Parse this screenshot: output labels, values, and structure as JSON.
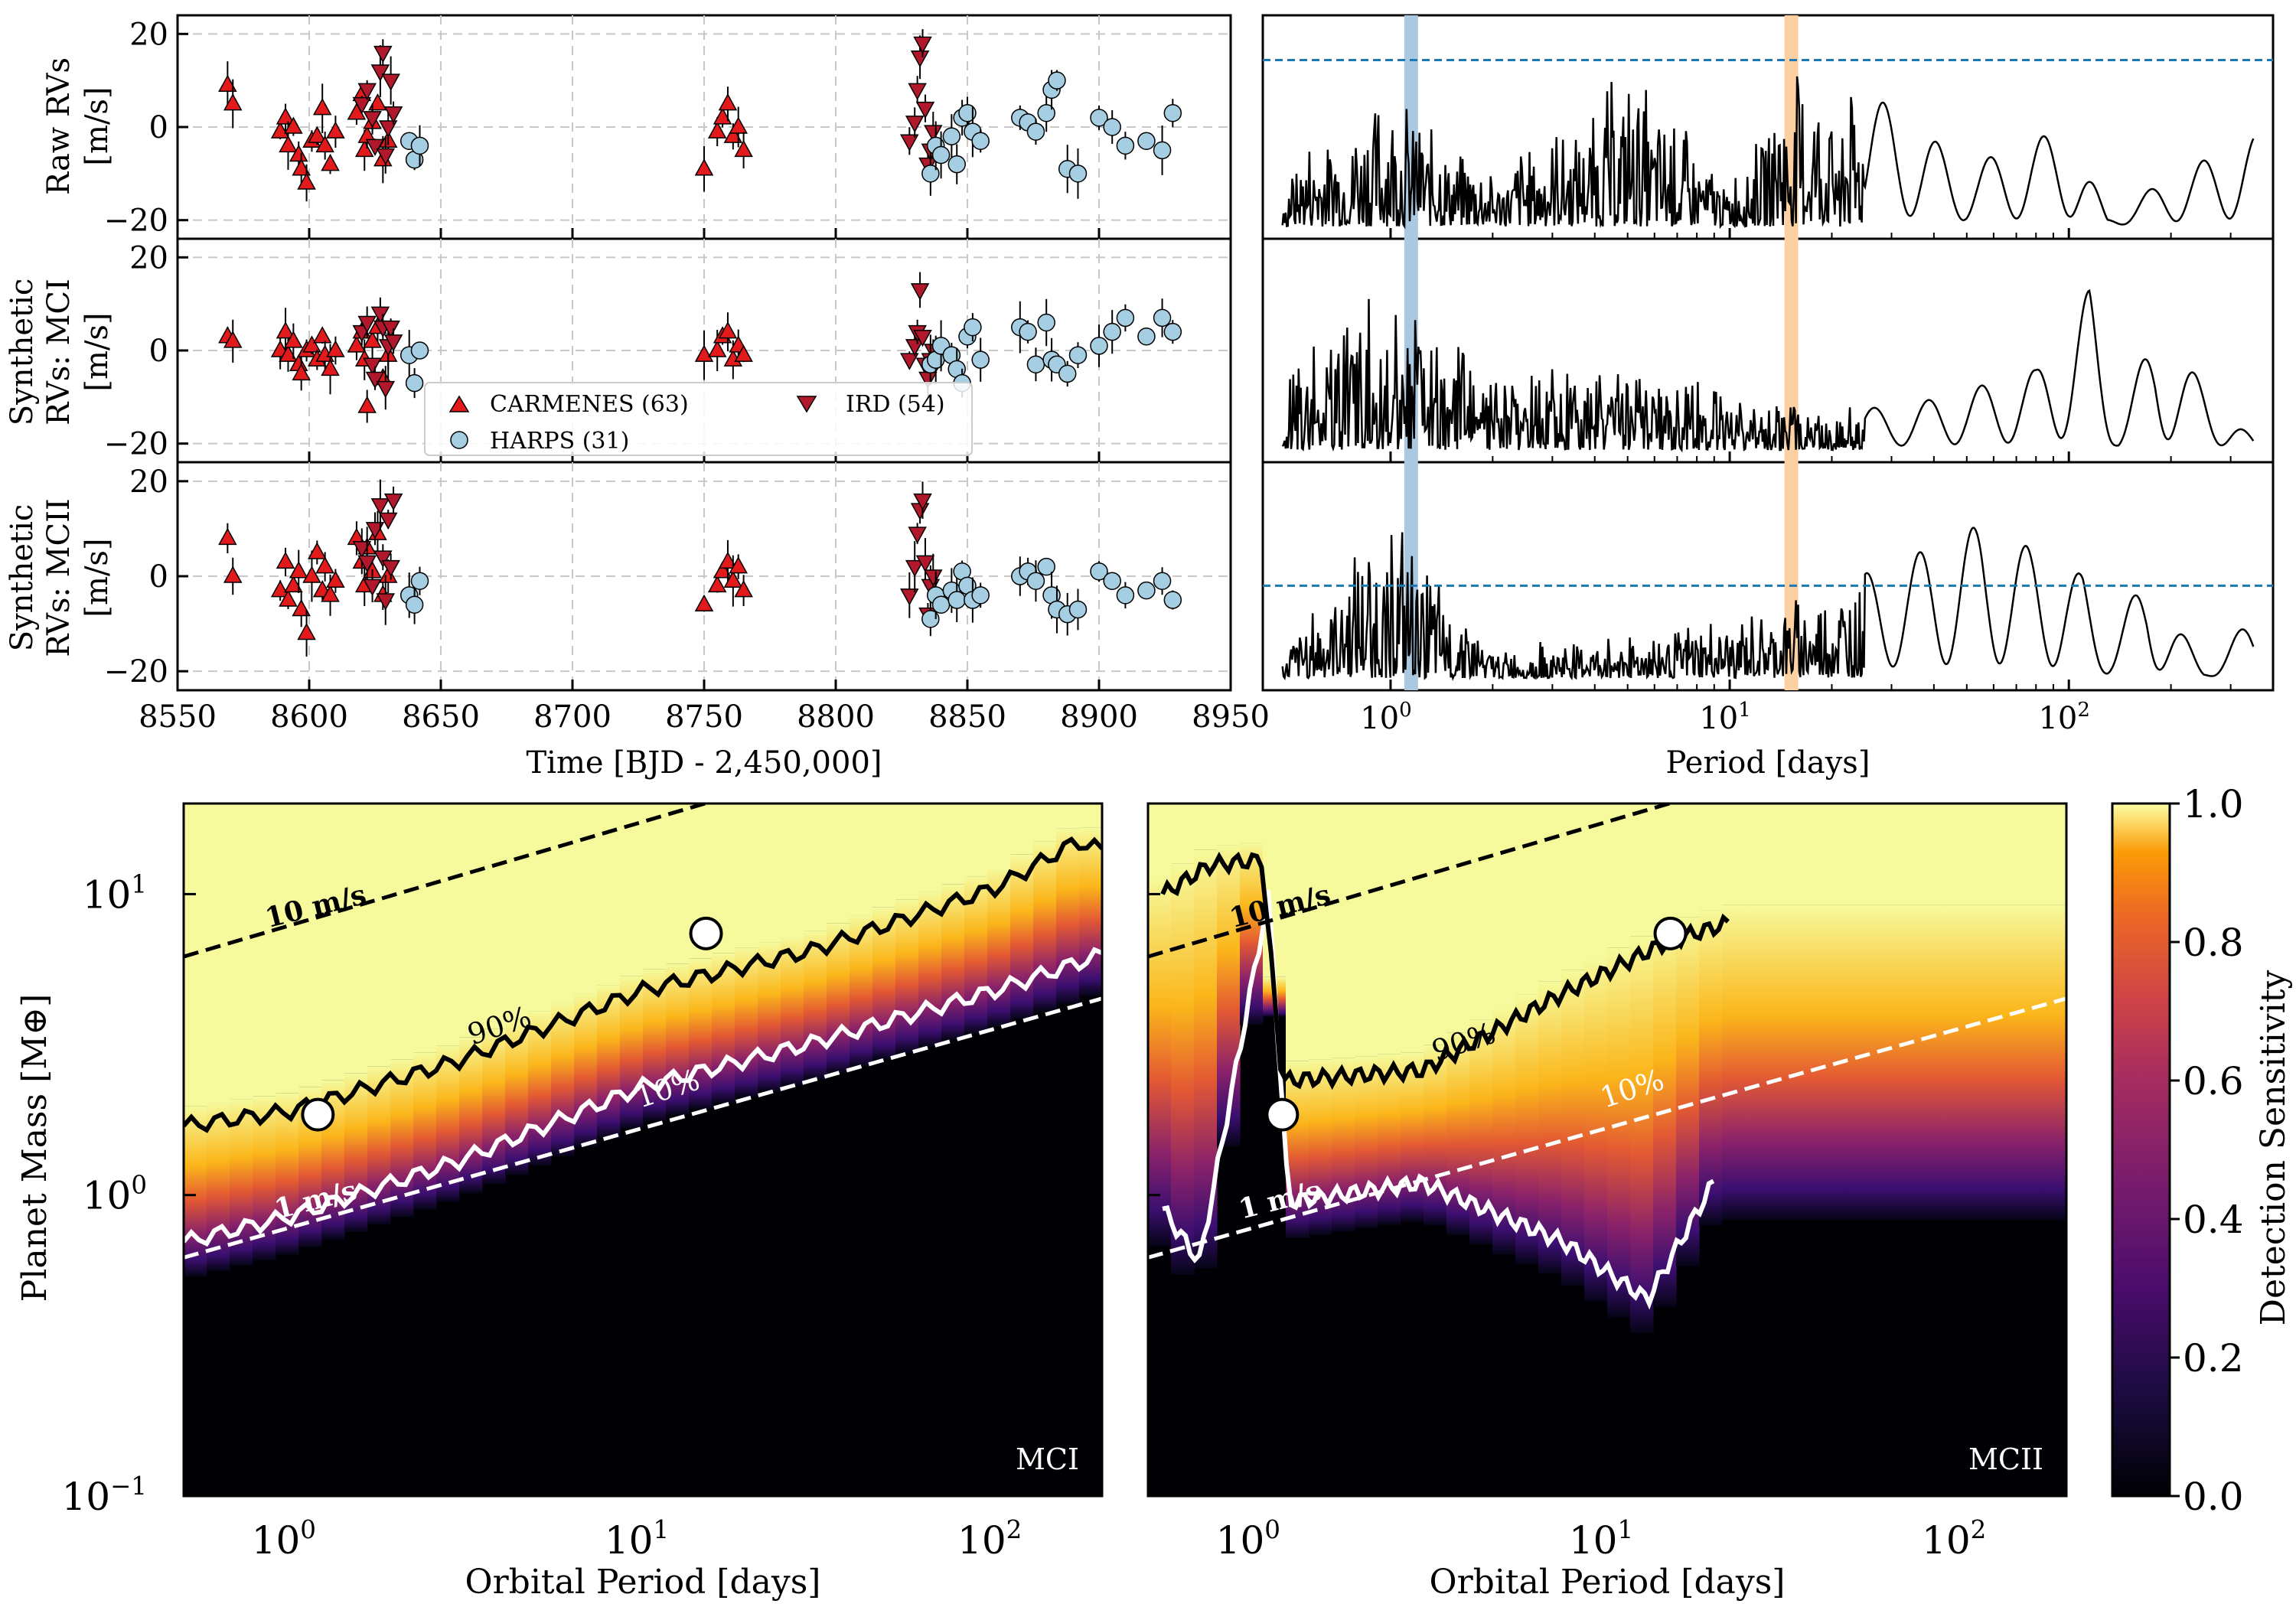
{
  "figure": {
    "title": "",
    "rv_panels": {
      "ylabels": [
        [
          "Raw RVs",
          "[m/s]"
        ],
        [
          "Synthetic",
          "RVs: MCI",
          "[m/s]"
        ],
        [
          "Synthetic",
          "RVs: MCII",
          "[m/s]"
        ]
      ],
      "xlabel": "Time [BJD - 2,450,000]",
      "x_ticks": [
        "8550",
        "8600",
        "8650",
        "8700",
        "8750",
        "8800",
        "8850",
        "8900",
        "8950"
      ],
      "y_ticks": [
        "20",
        "0",
        "−20"
      ]
    },
    "periodogram_panels": {
      "xlabel": "Period [days]",
      "x_ticks": [
        [
          "10",
          "0"
        ],
        [
          "10",
          "1"
        ],
        [
          "10",
          "2"
        ]
      ]
    },
    "sensitivity_maps": {
      "ylabel": "Planet Mass [M⊕]",
      "xlabel": "Orbital Period [days]",
      "y_ticks": [
        [
          "10",
          "1"
        ],
        [
          "10",
          "0"
        ],
        [
          "10",
          "−1"
        ]
      ],
      "x_ticks": [
        [
          "10",
          "0"
        ],
        [
          "10",
          "1"
        ],
        [
          "10",
          "2"
        ]
      ],
      "corner_labels": [
        "MCI",
        "MCII"
      ],
      "contour_labels": [
        "90%",
        "10%"
      ],
      "rv_line_labels": [
        "10 m/s",
        "1 m/s"
      ],
      "colorbar_label": "Detection Sensitivity",
      "colorbar_ticks": [
        "1.0",
        "0.8",
        "0.6",
        "0.4",
        "0.2",
        "0.0"
      ]
    },
    "legend": [
      {
        "label": "CARMENES (63)",
        "marker": "triangle-up",
        "color": "#e31a1c"
      },
      {
        "label": "IRD (54)",
        "marker": "triangle-down",
        "color": "#b2182b"
      },
      {
        "label": "HARPS (31)",
        "marker": "circle",
        "color": "#a6cee3"
      }
    ]
  },
  "chart_data": [
    {
      "type": "scatter",
      "title": "",
      "xlabel": "Time [BJD - 2,450,000]",
      "ylabel": "Raw RVs [m/s]",
      "xlim": [
        8550,
        8950
      ],
      "ylim": [
        -24,
        24
      ],
      "series": [
        {
          "name": "CARMENES (63)",
          "x": [
            8569,
            8571,
            8589,
            8591,
            8592,
            8594,
            8596,
            8597,
            8599,
            8601,
            8603,
            8605,
            8606,
            8608,
            8610,
            8618,
            8620,
            8621,
            8622,
            8624,
            8626,
            8628,
            8630,
            8750,
            8755,
            8757,
            8759,
            8761,
            8763,
            8765
          ],
          "y": [
            9,
            5,
            -1,
            2,
            -4,
            0,
            -6,
            -9,
            -12,
            -3,
            -2,
            4,
            -4,
            -8,
            -1,
            3,
            7,
            -5,
            -2,
            1,
            5,
            -7,
            -3,
            -9,
            -1,
            2,
            5,
            -2,
            0,
            -5
          ]
        },
        {
          "name": "IRD (54)",
          "x": [
            8620,
            8622,
            8624,
            8625,
            8627,
            8628,
            8629,
            8630,
            8631,
            8632,
            8828,
            8830,
            8831,
            8832,
            8833,
            8834,
            8835,
            8836,
            8837
          ],
          "y": [
            5,
            8,
            2,
            -4,
            12,
            16,
            -6,
            0,
            10,
            3,
            -3,
            1,
            8,
            15,
            18,
            4,
            -8,
            -5,
            -1
          ]
        },
        {
          "name": "HARPS (31)",
          "x": [
            8638,
            8640,
            8642,
            8836,
            8838,
            8840,
            8844,
            8846,
            8848,
            8850,
            8852,
            8855,
            8870,
            8873,
            8876,
            8880,
            8882,
            8884,
            8888,
            8892,
            8900,
            8905,
            8910,
            8918,
            8924,
            8928
          ],
          "y": [
            -3,
            -7,
            -4,
            -10,
            -4,
            -6,
            -2,
            -8,
            2,
            3,
            -1,
            -3,
            2,
            1,
            -1,
            3,
            8,
            10,
            -9,
            -10,
            2,
            0,
            -4,
            -3,
            -5,
            3
          ]
        }
      ]
    },
    {
      "type": "scatter",
      "title": "",
      "xlabel": "Time [BJD - 2,450,000]",
      "ylabel": "Synthetic RVs: MCI [m/s]",
      "xlim": [
        8550,
        8950
      ],
      "ylim": [
        -24,
        24
      ],
      "series": [
        {
          "name": "CARMENES (63)",
          "x": [
            8569,
            8571,
            8589,
            8591,
            8592,
            8594,
            8596,
            8597,
            8599,
            8601,
            8603,
            8605,
            8606,
            8608,
            8610,
            8618,
            8620,
            8621,
            8622,
            8624,
            8626,
            8628,
            8630,
            8750,
            8755,
            8757,
            8759,
            8761,
            8763,
            8765
          ],
          "y": [
            3,
            2,
            0,
            4,
            -1,
            2,
            -3,
            -5,
            0,
            1,
            -2,
            3,
            -1,
            -4,
            0,
            1,
            4,
            -2,
            -12,
            2,
            5,
            -6,
            -1,
            -1,
            0,
            3,
            4,
            -2,
            1,
            -1
          ]
        },
        {
          "name": "IRD (54)",
          "x": [
            8620,
            8622,
            8624,
            8625,
            8627,
            8628,
            8629,
            8630,
            8631,
            8632,
            8828,
            8830,
            8831,
            8832,
            8833,
            8834,
            8835,
            8836,
            8837
          ],
          "y": [
            4,
            6,
            -3,
            -6,
            8,
            5,
            -8,
            1,
            5,
            2,
            -2,
            1,
            4,
            13,
            3,
            -3,
            -6,
            -2,
            0
          ]
        },
        {
          "name": "HARPS (31)",
          "x": [
            8638,
            8640,
            8642,
            8836,
            8838,
            8840,
            8844,
            8846,
            8848,
            8850,
            8852,
            8855,
            8870,
            8873,
            8876,
            8880,
            8882,
            8884,
            8888,
            8892,
            8900,
            8905,
            8910,
            8918,
            8924,
            8928
          ],
          "y": [
            -1,
            -7,
            0,
            -3,
            -2,
            1,
            -1,
            -4,
            -7,
            3,
            5,
            -2,
            5,
            4,
            -3,
            6,
            -2,
            -3,
            -5,
            -1,
            1,
            4,
            7,
            3,
            7,
            4
          ]
        }
      ]
    },
    {
      "type": "scatter",
      "title": "",
      "xlabel": "Time [BJD - 2,450,000]",
      "ylabel": "Synthetic RVs: MCII [m/s]",
      "xlim": [
        8550,
        8950
      ],
      "ylim": [
        -24,
        24
      ],
      "series": [
        {
          "name": "CARMENES (63)",
          "x": [
            8569,
            8571,
            8589,
            8591,
            8592,
            8594,
            8596,
            8597,
            8599,
            8601,
            8603,
            8605,
            8606,
            8608,
            8610,
            8618,
            8620,
            8621,
            8622,
            8624,
            8626,
            8628,
            8630,
            8750,
            8755,
            8757,
            8759,
            8761,
            8763,
            8765
          ],
          "y": [
            8,
            0,
            -3,
            3,
            -5,
            -2,
            1,
            -7,
            -12,
            0,
            5,
            -3,
            2,
            -4,
            -1,
            8,
            3,
            -2,
            6,
            1,
            9,
            -4,
            0,
            -6,
            -2,
            1,
            3,
            -1,
            2,
            -3
          ]
        },
        {
          "name": "IRD (54)",
          "x": [
            8620,
            8622,
            8624,
            8625,
            8627,
            8628,
            8629,
            8630,
            8631,
            8632,
            8828,
            8830,
            8831,
            8832,
            8833,
            8834,
            8835,
            8836,
            8837
          ],
          "y": [
            6,
            3,
            -2,
            10,
            15,
            4,
            -5,
            12,
            2,
            16,
            -4,
            2,
            9,
            14,
            16,
            3,
            -8,
            -2,
            0
          ]
        },
        {
          "name": "HARPS (31)",
          "x": [
            8638,
            8640,
            8642,
            8836,
            8838,
            8840,
            8844,
            8846,
            8848,
            8850,
            8852,
            8855,
            8870,
            8873,
            8876,
            8880,
            8882,
            8884,
            8888,
            8892,
            8900,
            8905,
            8910,
            8918,
            8924,
            8928
          ],
          "y": [
            -4,
            -6,
            -1,
            -9,
            -4,
            -6,
            -3,
            -5,
            1,
            -2,
            -5,
            -4,
            0,
            1,
            -1,
            2,
            -4,
            -7,
            -8,
            -7,
            1,
            -1,
            -4,
            -3,
            -1,
            -5
          ]
        }
      ]
    },
    {
      "type": "line",
      "title": "",
      "xlabel": "Period [days]",
      "ylabel": "",
      "x_scale": "log",
      "xlim": [
        0.42,
        400
      ],
      "ylim": [
        0,
        1
      ],
      "highlight_periods": [
        {
          "period": 1.15,
          "color": "#aac8e0"
        },
        {
          "period": 15.2,
          "color": "#fdd0a2"
        }
      ],
      "threshold_level": 0.83,
      "series": [
        {
          "x": [
            0.5,
            1,
            2,
            5,
            10,
            15.2,
            30,
            50,
            100,
            130,
            200,
            350
          ],
          "y": [
            0.4,
            0.75,
            0.3,
            0.8,
            0.25,
            0.82,
            0.6,
            0.3,
            0.5,
            0.05,
            0.25,
            0.45
          ]
        }
      ]
    },
    {
      "type": "line",
      "title": "",
      "xlabel": "Period [days]",
      "ylabel": "",
      "x_scale": "log",
      "xlim": [
        0.42,
        400
      ],
      "ylim": [
        0,
        1
      ],
      "series": [
        {
          "x": [
            0.5,
            1,
            2,
            5,
            10,
            30,
            50,
            80,
            115,
            140,
            180,
            350
          ],
          "y": [
            0.5,
            0.9,
            0.35,
            0.5,
            0.3,
            0.2,
            0.3,
            0.4,
            0.8,
            0.15,
            0.6,
            0.05
          ]
        }
      ]
    },
    {
      "type": "line",
      "title": "",
      "xlabel": "Period [days]",
      "ylabel": "",
      "x_scale": "log",
      "xlim": [
        0.42,
        400
      ],
      "ylim": [
        0,
        1
      ],
      "threshold_level": 0.45,
      "series": [
        {
          "x": [
            0.5,
            1,
            2,
            5,
            10,
            30,
            55,
            85,
            110,
            130,
            170,
            250,
            350
          ],
          "y": [
            0.2,
            0.85,
            0.15,
            0.25,
            0.3,
            0.55,
            0.75,
            0.6,
            0.5,
            0.2,
            0.5,
            0.05,
            0.3
          ]
        }
      ]
    },
    {
      "type": "heatmap",
      "title": "",
      "xlabel": "Orbital Period [days]",
      "ylabel": "Planet Mass [M⊕]",
      "x_scale": "log",
      "y_scale": "log",
      "xlim": [
        0.5,
        200
      ],
      "ylim": [
        0.1,
        20
      ],
      "zlim": [
        0,
        1
      ],
      "label": "MCI",
      "contour_90": {
        "period": [
          0.5,
          1,
          3,
          10,
          30,
          100,
          170,
          200
        ],
        "mass": [
          1.7,
          1.9,
          2.8,
          4.8,
          6.5,
          10.5,
          15,
          14
        ]
      },
      "contour_10": {
        "period": [
          0.5,
          1,
          3,
          10,
          30,
          100,
          200
        ],
        "mass": [
          0.7,
          0.85,
          1.3,
          2.3,
          3.2,
          4.8,
          6.3
        ]
      },
      "rv_lines": [
        {
          "label": "10 m/s",
          "period": [
            0.5,
            15
          ],
          "mass": [
            6.2,
            20
          ]
        },
        {
          "label": "1 m/s",
          "period": [
            0.5,
            200
          ],
          "mass": [
            0.62,
            4.5
          ]
        }
      ],
      "planets": {
        "period": [
          1.2,
          15.1
        ],
        "mass": [
          1.85,
          7.4
        ]
      }
    },
    {
      "type": "heatmap",
      "title": "",
      "xlabel": "Orbital Period [days]",
      "ylabel": "Planet Mass [M⊕]",
      "x_scale": "log",
      "y_scale": "log",
      "xlim": [
        0.5,
        200
      ],
      "ylim": [
        0.1,
        20
      ],
      "zlim": [
        0,
        1
      ],
      "label": "MCII",
      "contour_90": {
        "period": [
          0.55,
          0.75,
          1.05,
          1.2,
          3,
          7,
          15,
          22
        ],
        "mass": [
          10,
          12.5,
          13,
          2.4,
          2.6,
          4.5,
          7,
          8
        ]
      },
      "contour_10": {
        "period": [
          0.55,
          0.7,
          1.1,
          1.25,
          3,
          7.5,
          13,
          20
        ],
        "mass": [
          0.9,
          0.6,
          10,
          0.95,
          1.1,
          0.7,
          0.45,
          1.1
        ]
      },
      "rv_lines": [
        {
          "label": "10 m/s",
          "period": [
            0.5,
            15
          ],
          "mass": [
            6.2,
            20
          ]
        },
        {
          "label": "1 m/s",
          "period": [
            0.5,
            200
          ],
          "mass": [
            0.62,
            4.5
          ]
        }
      ],
      "planets": {
        "period": [
          1.2,
          15.1
        ],
        "mass": [
          1.85,
          7.4
        ]
      }
    }
  ]
}
